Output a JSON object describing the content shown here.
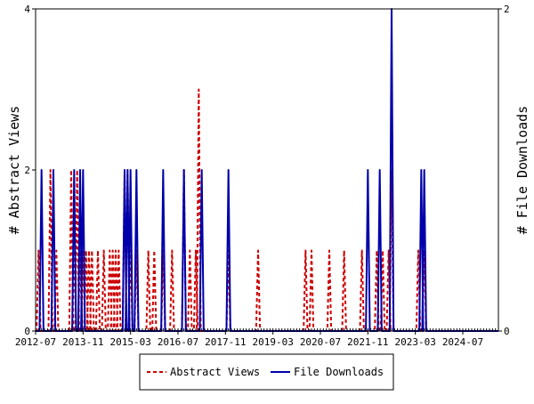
{
  "chart_data": {
    "type": "line",
    "title": "",
    "x_axis": {
      "tick_labels": [
        "2012-07",
        "2013-11",
        "2015-03",
        "2016-07",
        "2017-11",
        "2019-03",
        "2020-07",
        "2021-11",
        "2023-03",
        "2024-07"
      ],
      "tick_values": [
        2012.5,
        2013.833,
        2015.167,
        2016.5,
        2017.833,
        2019.167,
        2020.5,
        2021.833,
        2023.167,
        2024.5
      ],
      "range": [
        2012.5,
        2025.5
      ]
    },
    "y_left": {
      "label": "# Abstract Views",
      "range": [
        0,
        4
      ],
      "tick_labels": [
        "0",
        "2",
        "4"
      ],
      "tick_values": [
        0,
        2,
        4
      ]
    },
    "y_right": {
      "label": "# File Downloads",
      "range": [
        0,
        2
      ],
      "tick_labels": [
        "0",
        "2"
      ],
      "tick_values": [
        0,
        2
      ]
    },
    "grid": false,
    "legend_position": "bottom-center",
    "colors": {
      "abstract_views": "#cc0000",
      "file_downloads": "#0000aa"
    },
    "series": [
      {
        "name": "Abstract Views",
        "axis": "left",
        "style": "dashed",
        "points": [
          [
            2012.58,
            1
          ],
          [
            2012.92,
            2
          ],
          [
            2013.08,
            1
          ],
          [
            2013.5,
            2
          ],
          [
            2013.58,
            1
          ],
          [
            2013.67,
            2
          ],
          [
            2013.75,
            1
          ],
          [
            2013.83,
            1
          ],
          [
            2013.92,
            1
          ],
          [
            2014.0,
            1
          ],
          [
            2014.08,
            1
          ],
          [
            2014.25,
            1
          ],
          [
            2014.42,
            1
          ],
          [
            2014.58,
            1
          ],
          [
            2014.67,
            1
          ],
          [
            2014.75,
            1
          ],
          [
            2014.83,
            1
          ],
          [
            2015.0,
            2
          ],
          [
            2015.08,
            2
          ],
          [
            2015.17,
            1
          ],
          [
            2015.33,
            1
          ],
          [
            2015.67,
            1
          ],
          [
            2015.83,
            1
          ],
          [
            2016.08,
            1
          ],
          [
            2016.33,
            1
          ],
          [
            2016.67,
            2
          ],
          [
            2016.83,
            1
          ],
          [
            2017.0,
            1
          ],
          [
            2017.08,
            3
          ],
          [
            2017.92,
            1
          ],
          [
            2018.75,
            1
          ],
          [
            2020.08,
            1
          ],
          [
            2020.25,
            1
          ],
          [
            2020.75,
            1
          ],
          [
            2021.17,
            1
          ],
          [
            2021.67,
            1
          ],
          [
            2022.08,
            1
          ],
          [
            2022.25,
            1
          ],
          [
            2022.42,
            1
          ],
          [
            2022.5,
            2
          ],
          [
            2023.25,
            1
          ],
          [
            2023.42,
            1
          ]
        ]
      },
      {
        "name": "File Downloads",
        "axis": "right",
        "style": "solid",
        "points": [
          [
            2012.67,
            1
          ],
          [
            2013.0,
            1
          ],
          [
            2013.58,
            1
          ],
          [
            2013.75,
            1
          ],
          [
            2013.83,
            1
          ],
          [
            2015.0,
            1
          ],
          [
            2015.08,
            1
          ],
          [
            2015.17,
            1
          ],
          [
            2015.33,
            1
          ],
          [
            2016.08,
            1
          ],
          [
            2016.67,
            1
          ],
          [
            2017.17,
            1
          ],
          [
            2017.92,
            1
          ],
          [
            2021.83,
            1
          ],
          [
            2022.17,
            1
          ],
          [
            2022.5,
            2
          ],
          [
            2023.33,
            1
          ],
          [
            2023.42,
            1
          ]
        ]
      }
    ]
  }
}
